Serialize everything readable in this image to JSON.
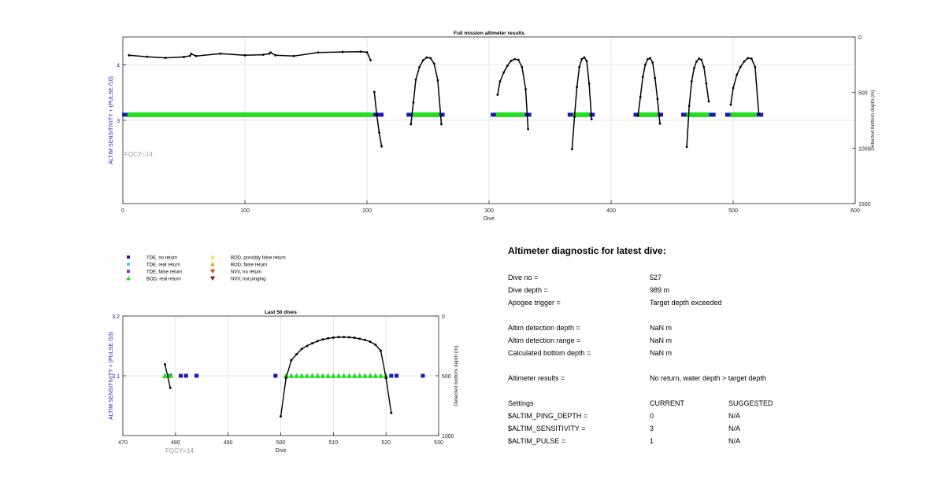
{
  "colors": {
    "tde_no_return": "#1a1ab3",
    "tde_real_return": "#3fd0e6",
    "tde_false_return": "#7a3cc4",
    "bod_real_return": "#22dd22",
    "bod_possibly_false": "#f2e03a",
    "bod_false_return": "#f0a020",
    "nvv_no_return": "#d04010",
    "nvv_not_pinging": "#7a1010",
    "depth_line": "#000000",
    "left_axis_label": "#2020b0",
    "fqcy": "#999999",
    "grid": "#e6e6e6"
  },
  "chart_data": [
    {
      "type": "scatter",
      "title": "Full mission altimeter results",
      "xlabel": "Dive",
      "ylabel": "ALTIM SENSITIVITY + (PULSE /10)",
      "y2label": "Detected bottom depth (m)",
      "xlim": [
        0,
        600
      ],
      "ylim": [
        1.5,
        4.5
      ],
      "y2lim": [
        0,
        1500
      ],
      "y2_reversed": true,
      "xticks": [
        "0",
        "100",
        "200",
        "300",
        "400",
        "500",
        "600"
      ],
      "yticks": [
        "3",
        "4"
      ],
      "y2ticks": [
        "0",
        "500",
        "1000",
        "1500"
      ],
      "annotation": "FQCY=14",
      "grid": true,
      "sensitivity_level": 3.1,
      "tde_no_return_segments": [
        [
          1,
          212
        ],
        [
          234,
          262
        ],
        [
          303,
          333
        ],
        [
          366,
          385
        ],
        [
          420,
          441
        ],
        [
          459,
          484
        ],
        [
          495,
          523
        ]
      ],
      "bod_real_return_segments": [
        [
          5,
          204
        ],
        [
          238,
          258
        ],
        [
          307,
          328
        ],
        [
          370,
          381
        ],
        [
          424,
          437
        ],
        [
          463,
          479
        ],
        [
          499,
          518
        ]
      ],
      "depth_segments": [
        {
          "dives": [
            5,
            20,
            35,
            50,
            55,
            56,
            60,
            80,
            100,
            115,
            120,
            121,
            125,
            140,
            160,
            180,
            195,
            200,
            203
          ],
          "depth": [
            165,
            178,
            188,
            180,
            170,
            152,
            172,
            150,
            165,
            160,
            150,
            140,
            165,
            172,
            140,
            135,
            132,
            138,
            210
          ]
        },
        {
          "dives": [
            206,
            208,
            210,
            212
          ],
          "depth": [
            495,
            700,
            860,
            985
          ]
        },
        {
          "dives": [
            236,
            238,
            240,
            243,
            246,
            249,
            252,
            255,
            258,
            261
          ],
          "depth": [
            785,
            590,
            385,
            270,
            210,
            185,
            190,
            240,
            390,
            785
          ]
        },
        {
          "dives": [
            307,
            309,
            312,
            315,
            318,
            321,
            324,
            327,
            330,
            332
          ],
          "depth": [
            520,
            400,
            320,
            260,
            215,
            200,
            205,
            270,
            470,
            830
          ]
        },
        {
          "dives": [
            368,
            370,
            372,
            374,
            376,
            378,
            380,
            382,
            384
          ],
          "depth": [
            1010,
            720,
            450,
            270,
            200,
            185,
            215,
            420,
            740
          ]
        },
        {
          "dives": [
            422,
            424,
            426,
            428,
            430,
            432,
            434,
            436,
            438,
            440
          ],
          "depth": [
            710,
            540,
            360,
            250,
            200,
            190,
            230,
            370,
            560,
            780
          ]
        },
        {
          "dives": [
            462,
            464,
            466,
            468,
            470,
            472,
            474,
            476,
            478,
            480
          ],
          "depth": [
            990,
            620,
            400,
            280,
            220,
            195,
            205,
            270,
            420,
            580
          ]
        },
        {
          "dives": [
            498,
            500,
            503,
            506,
            509,
            512,
            515,
            518,
            521
          ],
          "depth": [
            610,
            460,
            340,
            270,
            220,
            190,
            195,
            270,
            690
          ]
        }
      ]
    },
    {
      "type": "scatter",
      "title": "Last 50 dives",
      "xlabel": "Dive",
      "ylabel": "ALTIM SENSITIVITY + (PULSE /10)",
      "y2label": "Detected bottom depth (m)",
      "xlim": [
        470,
        530
      ],
      "ylim": [
        3.0,
        3.2
      ],
      "y2lim": [
        0,
        1000
      ],
      "y2_reversed": true,
      "xticks": [
        "470",
        "480",
        "490",
        "500",
        "510",
        "520",
        "530"
      ],
      "yticks": [
        "3.1",
        "3.2"
      ],
      "y2ticks": [
        "0",
        "500",
        "1000"
      ],
      "annotation": "FQCY=14",
      "grid": true,
      "sensitivity_level": 3.1,
      "tde_no_return_dives": [
        479,
        481,
        482,
        484,
        499,
        521,
        522,
        527
      ],
      "bod_real_return_dives": [
        478,
        479,
        501,
        502,
        503,
        504,
        505,
        506,
        507,
        508,
        509,
        510,
        511,
        512,
        513,
        514,
        515,
        516,
        517,
        518,
        519,
        520
      ],
      "depth_segments": [
        {
          "dives": [
            478,
            479
          ],
          "depth": [
            405,
            600
          ]
        },
        {
          "dives": [
            500,
            501,
            502,
            503,
            504,
            505,
            506,
            507,
            508,
            509,
            510,
            511,
            512,
            513,
            514,
            515,
            516,
            517,
            518,
            519,
            520,
            521
          ],
          "depth": [
            840,
            520,
            370,
            320,
            275,
            250,
            228,
            210,
            196,
            186,
            180,
            176,
            176,
            178,
            182,
            190,
            200,
            215,
            240,
            290,
            520,
            810
          ]
        }
      ]
    }
  ],
  "legend": [
    {
      "label": "TDE, no return",
      "shape": "square",
      "color_key": "tde_no_return"
    },
    {
      "label": "TDE, real return",
      "shape": "square",
      "color_key": "tde_real_return"
    },
    {
      "label": "TDE, false return",
      "shape": "square",
      "color_key": "tde_false_return"
    },
    {
      "label": "BOD, real return",
      "shape": "triangle-up",
      "color_key": "bod_real_return"
    },
    {
      "label": "BOD, possibly false return",
      "shape": "triangle-up",
      "color_key": "bod_possibly_false"
    },
    {
      "label": "BOD, false return",
      "shape": "triangle-up",
      "color_key": "bod_false_return"
    },
    {
      "label": "NVV, no return",
      "shape": "triangle-down",
      "color_key": "nvv_no_return"
    },
    {
      "label": "NVV, not pinging",
      "shape": "triangle-down",
      "color_key": "nvv_not_pinging"
    }
  ],
  "diagnostic": {
    "title": "Altimeter diagnostic for latest dive:",
    "rows": [
      {
        "label": "Dive no =",
        "value": "527"
      },
      {
        "label": "Dive depth =",
        "value": "989 m"
      },
      {
        "label": "Apogee trigger =",
        "value": "Target depth exceeded"
      },
      {
        "label": "Altim detection depth =",
        "value": "NaN m"
      },
      {
        "label": "Altim detection range =",
        "value": "NaN m"
      },
      {
        "label": "Calculated bottom depth =",
        "value": "NaN m"
      },
      {
        "label": "Altimeter results =",
        "value": "No return, water depth > target depth"
      }
    ],
    "settings_header": {
      "label": "Settings",
      "current": "CURRENT",
      "suggested": "SUGGESTED"
    },
    "settings": [
      {
        "name": "$ALTIM_PING_DEPTH =",
        "current": "0",
        "suggested": "N/A"
      },
      {
        "name": "$ALTIM_SENSITIVITY =",
        "current": "3",
        "suggested": "N/A"
      },
      {
        "name": "$ALTIM_PULSE =",
        "current": "1",
        "suggested": "N/A"
      }
    ]
  }
}
